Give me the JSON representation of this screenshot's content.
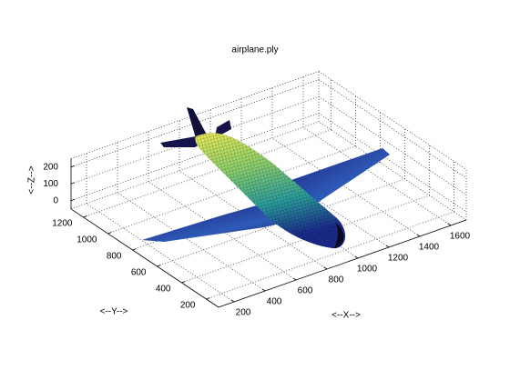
{
  "chart_data": {
    "type": "surface3d",
    "title": "airplane.ply",
    "xlabel": "<--X-->",
    "ylabel": "<--Y-->",
    "zlabel": "<--Z-->",
    "xlim": [
      100,
      1700
    ],
    "ylim": [
      100,
      1300
    ],
    "zlim": [
      -50,
      250
    ],
    "xticks": [
      200,
      400,
      600,
      800,
      1000,
      1200,
      1400,
      1600
    ],
    "yticks": [
      200,
      400,
      600,
      800,
      1000,
      1200
    ],
    "zticks": [
      0,
      100,
      200
    ],
    "grid": true
  }
}
